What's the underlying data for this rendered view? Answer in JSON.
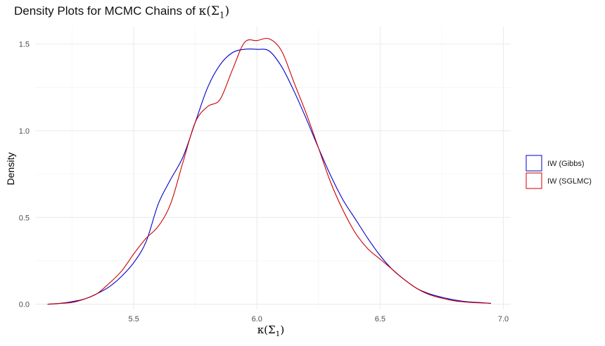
{
  "chart_data": {
    "type": "line",
    "title_text": "Density Plots for MCMC Chains of ",
    "title_math": "κ(Σ",
    "title_sub": "1",
    "title_math_close": ")",
    "xlabel_math": "κ(Σ",
    "xlabel_sub": "1",
    "xlabel_close": ")",
    "ylabel": "Density",
    "xlim": [
      5.1,
      7.03
    ],
    "ylim": [
      -0.03,
      1.6
    ],
    "x_ticks": [
      5.5,
      6.0,
      6.5,
      7.0
    ],
    "x_tick_labels": [
      "5.5",
      "6.0",
      "6.5",
      "7.0"
    ],
    "y_ticks": [
      0.0,
      0.5,
      1.0,
      1.5
    ],
    "y_tick_labels": [
      "0.0",
      "0.5",
      "1.0",
      "1.5"
    ],
    "grid": true,
    "legend_position": "right",
    "series": [
      {
        "name": "IW (Gibbs)",
        "color": "#0000cc",
        "points": [
          [
            5.15,
            0.0
          ],
          [
            5.2,
            0.005
          ],
          [
            5.25,
            0.015
          ],
          [
            5.3,
            0.03
          ],
          [
            5.35,
            0.06
          ],
          [
            5.4,
            0.1
          ],
          [
            5.45,
            0.16
          ],
          [
            5.5,
            0.24
          ],
          [
            5.55,
            0.36
          ],
          [
            5.6,
            0.58
          ],
          [
            5.65,
            0.72
          ],
          [
            5.7,
            0.85
          ],
          [
            5.75,
            1.05
          ],
          [
            5.8,
            1.25
          ],
          [
            5.85,
            1.38
          ],
          [
            5.9,
            1.45
          ],
          [
            5.95,
            1.47
          ],
          [
            6.0,
            1.47
          ],
          [
            6.05,
            1.46
          ],
          [
            6.1,
            1.37
          ],
          [
            6.15,
            1.23
          ],
          [
            6.2,
            1.07
          ],
          [
            6.25,
            0.9
          ],
          [
            6.3,
            0.74
          ],
          [
            6.35,
            0.6
          ],
          [
            6.4,
            0.49
          ],
          [
            6.45,
            0.38
          ],
          [
            6.5,
            0.28
          ],
          [
            6.55,
            0.2
          ],
          [
            6.6,
            0.14
          ],
          [
            6.65,
            0.09
          ],
          [
            6.7,
            0.06
          ],
          [
            6.75,
            0.04
          ],
          [
            6.8,
            0.025
          ],
          [
            6.85,
            0.015
          ],
          [
            6.9,
            0.01
          ],
          [
            6.95,
            0.005
          ]
        ]
      },
      {
        "name": "IW (SGLMC)",
        "color": "#cc0000",
        "points": [
          [
            5.15,
            0.0
          ],
          [
            5.2,
            0.005
          ],
          [
            5.25,
            0.01
          ],
          [
            5.3,
            0.03
          ],
          [
            5.35,
            0.06
          ],
          [
            5.4,
            0.12
          ],
          [
            5.45,
            0.19
          ],
          [
            5.5,
            0.29
          ],
          [
            5.55,
            0.38
          ],
          [
            5.6,
            0.45
          ],
          [
            5.65,
            0.58
          ],
          [
            5.7,
            0.82
          ],
          [
            5.75,
            1.05
          ],
          [
            5.8,
            1.14
          ],
          [
            5.85,
            1.18
          ],
          [
            5.9,
            1.35
          ],
          [
            5.95,
            1.51
          ],
          [
            6.0,
            1.52
          ],
          [
            6.05,
            1.53
          ],
          [
            6.1,
            1.46
          ],
          [
            6.15,
            1.28
          ],
          [
            6.2,
            1.1
          ],
          [
            6.25,
            0.9
          ],
          [
            6.3,
            0.7
          ],
          [
            6.35,
            0.54
          ],
          [
            6.4,
            0.41
          ],
          [
            6.45,
            0.32
          ],
          [
            6.5,
            0.26
          ],
          [
            6.55,
            0.2
          ],
          [
            6.6,
            0.14
          ],
          [
            6.65,
            0.09
          ],
          [
            6.7,
            0.055
          ],
          [
            6.75,
            0.035
          ],
          [
            6.8,
            0.02
          ],
          [
            6.85,
            0.012
          ],
          [
            6.9,
            0.008
          ],
          [
            6.95,
            0.005
          ]
        ]
      }
    ]
  }
}
